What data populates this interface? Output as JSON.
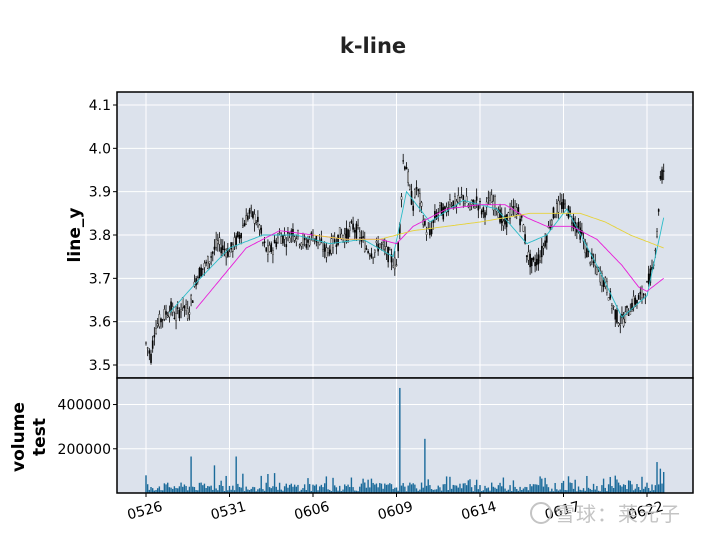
{
  "chart_data": [
    {
      "type": "candlestick",
      "title": "k-line",
      "ylabel": "line_y",
      "ylim": [
        3.47,
        4.13
      ],
      "yticks": [
        3.5,
        3.6,
        3.7,
        3.8,
        3.9,
        4.0,
        4.1
      ],
      "xticks": [
        {
          "index": 0,
          "label": "0526"
        },
        {
          "index": 50,
          "label": "0531"
        },
        {
          "index": 100,
          "label": "0606"
        },
        {
          "index": 150,
          "label": "0609"
        },
        {
          "index": 200,
          "label": "0614"
        },
        {
          "index": 250,
          "label": "0617"
        },
        {
          "index": 300,
          "label": "0622"
        }
      ],
      "grid": true,
      "background": "#dce2ec",
      "colors": {
        "candle": "#000000",
        "ma_fast": "#2bbcc8",
        "ma_mid": "#e81cd8",
        "ma_slow": "#e6d23a"
      },
      "path": [
        [
          0,
          3.55
        ],
        [
          3,
          3.52
        ],
        [
          5,
          3.58
        ],
        [
          8,
          3.6
        ],
        [
          12,
          3.62
        ],
        [
          15,
          3.63
        ],
        [
          18,
          3.61
        ],
        [
          22,
          3.64
        ],
        [
          25,
          3.62
        ],
        [
          28,
          3.66
        ],
        [
          30,
          3.7
        ],
        [
          33,
          3.72
        ],
        [
          36,
          3.73
        ],
        [
          40,
          3.76
        ],
        [
          43,
          3.78
        ],
        [
          46,
          3.77
        ],
        [
          50,
          3.76
        ],
        [
          53,
          3.78
        ],
        [
          56,
          3.8
        ],
        [
          59,
          3.83
        ],
        [
          62,
          3.85
        ],
        [
          65,
          3.84
        ],
        [
          68,
          3.82
        ],
        [
          70,
          3.78
        ],
        [
          73,
          3.76
        ],
        [
          76,
          3.77
        ],
        [
          80,
          3.8
        ],
        [
          84,
          3.79
        ],
        [
          88,
          3.81
        ],
        [
          92,
          3.79
        ],
        [
          96,
          3.78
        ],
        [
          100,
          3.8
        ],
        [
          104,
          3.78
        ],
        [
          108,
          3.76
        ],
        [
          112,
          3.78
        ],
        [
          116,
          3.8
        ],
        [
          120,
          3.8
        ],
        [
          124,
          3.82
        ],
        [
          128,
          3.8
        ],
        [
          132,
          3.77
        ],
        [
          136,
          3.76
        ],
        [
          140,
          3.78
        ],
        [
          144,
          3.76
        ],
        [
          148,
          3.74
        ],
        [
          150,
          3.73
        ],
        [
          152,
          3.82
        ],
        [
          154,
          3.97
        ],
        [
          156,
          3.96
        ],
        [
          158,
          3.9
        ],
        [
          160,
          3.87
        ],
        [
          162,
          3.91
        ],
        [
          164,
          3.88
        ],
        [
          167,
          3.82
        ],
        [
          170,
          3.8
        ],
        [
          173,
          3.84
        ],
        [
          176,
          3.86
        ],
        [
          179,
          3.85
        ],
        [
          182,
          3.88
        ],
        [
          186,
          3.87
        ],
        [
          190,
          3.89
        ],
        [
          194,
          3.86
        ],
        [
          198,
          3.88
        ],
        [
          202,
          3.85
        ],
        [
          206,
          3.88
        ],
        [
          210,
          3.87
        ],
        [
          214,
          3.82
        ],
        [
          218,
          3.85
        ],
        [
          222,
          3.86
        ],
        [
          226,
          3.82
        ],
        [
          228,
          3.76
        ],
        [
          231,
          3.73
        ],
        [
          234,
          3.74
        ],
        [
          237,
          3.76
        ],
        [
          240,
          3.8
        ],
        [
          243,
          3.84
        ],
        [
          246,
          3.86
        ],
        [
          249,
          3.87
        ],
        [
          252,
          3.86
        ],
        [
          255,
          3.84
        ],
        [
          258,
          3.82
        ],
        [
          261,
          3.8
        ],
        [
          264,
          3.76
        ],
        [
          267,
          3.74
        ],
        [
          270,
          3.72
        ],
        [
          273,
          3.7
        ],
        [
          276,
          3.68
        ],
        [
          279,
          3.64
        ],
        [
          282,
          3.61
        ],
        [
          285,
          3.6
        ],
        [
          288,
          3.62
        ],
        [
          291,
          3.64
        ],
        [
          294,
          3.65
        ],
        [
          297,
          3.66
        ],
        [
          300,
          3.68
        ],
        [
          303,
          3.72
        ],
        [
          306,
          3.8
        ],
        [
          308,
          3.93
        ],
        [
          310,
          3.95
        ]
      ],
      "ma_fast": [
        [
          14,
          3.62
        ],
        [
          30,
          3.69
        ],
        [
          50,
          3.77
        ],
        [
          70,
          3.8
        ],
        [
          90,
          3.8
        ],
        [
          110,
          3.78
        ],
        [
          130,
          3.79
        ],
        [
          148,
          3.75
        ],
        [
          156,
          3.9
        ],
        [
          170,
          3.83
        ],
        [
          190,
          3.88
        ],
        [
          210,
          3.86
        ],
        [
          228,
          3.78
        ],
        [
          240,
          3.8
        ],
        [
          252,
          3.86
        ],
        [
          270,
          3.73
        ],
        [
          285,
          3.61
        ],
        [
          300,
          3.66
        ],
        [
          310,
          3.84
        ]
      ],
      "ma_mid": [
        [
          30,
          3.63
        ],
        [
          45,
          3.7
        ],
        [
          60,
          3.77
        ],
        [
          80,
          3.81
        ],
        [
          100,
          3.8
        ],
        [
          120,
          3.79
        ],
        [
          140,
          3.79
        ],
        [
          150,
          3.78
        ],
        [
          160,
          3.82
        ],
        [
          180,
          3.86
        ],
        [
          200,
          3.87
        ],
        [
          215,
          3.87
        ],
        [
          228,
          3.84
        ],
        [
          240,
          3.82
        ],
        [
          255,
          3.82
        ],
        [
          270,
          3.79
        ],
        [
          285,
          3.73
        ],
        [
          295,
          3.68
        ],
        [
          300,
          3.67
        ],
        [
          310,
          3.7
        ]
      ],
      "ma_slow": [
        [
          100,
          3.8
        ],
        [
          120,
          3.79
        ],
        [
          140,
          3.79
        ],
        [
          160,
          3.81
        ],
        [
          180,
          3.82
        ],
        [
          200,
          3.83
        ],
        [
          215,
          3.84
        ],
        [
          230,
          3.85
        ],
        [
          245,
          3.85
        ],
        [
          260,
          3.85
        ],
        [
          275,
          3.83
        ],
        [
          290,
          3.8
        ],
        [
          310,
          3.77
        ]
      ]
    },
    {
      "type": "bar",
      "ylabel_lines": [
        "volume",
        "test"
      ],
      "ylim": [
        0,
        520000
      ],
      "yticks": [
        200000,
        400000
      ],
      "ytick_labels": [
        "200000",
        "400000"
      ],
      "color": "#1a6a9a",
      "spikes": [
        [
          0,
          80000
        ],
        [
          27,
          165000
        ],
        [
          41,
          125000
        ],
        [
          54,
          165000
        ],
        [
          77,
          90000
        ],
        [
          108,
          75000
        ],
        [
          123,
          70000
        ],
        [
          135,
          65000
        ],
        [
          152,
          475000
        ],
        [
          167,
          245000
        ],
        [
          180,
          75000
        ],
        [
          198,
          60000
        ],
        [
          214,
          70000
        ],
        [
          236,
          75000
        ],
        [
          257,
          60000
        ],
        [
          274,
          65000
        ],
        [
          290,
          55000
        ],
        [
          306,
          140000
        ],
        [
          308,
          110000
        ],
        [
          310,
          95000
        ]
      ],
      "base_level": 25000
    }
  ],
  "watermark": "雪球：莱元子"
}
